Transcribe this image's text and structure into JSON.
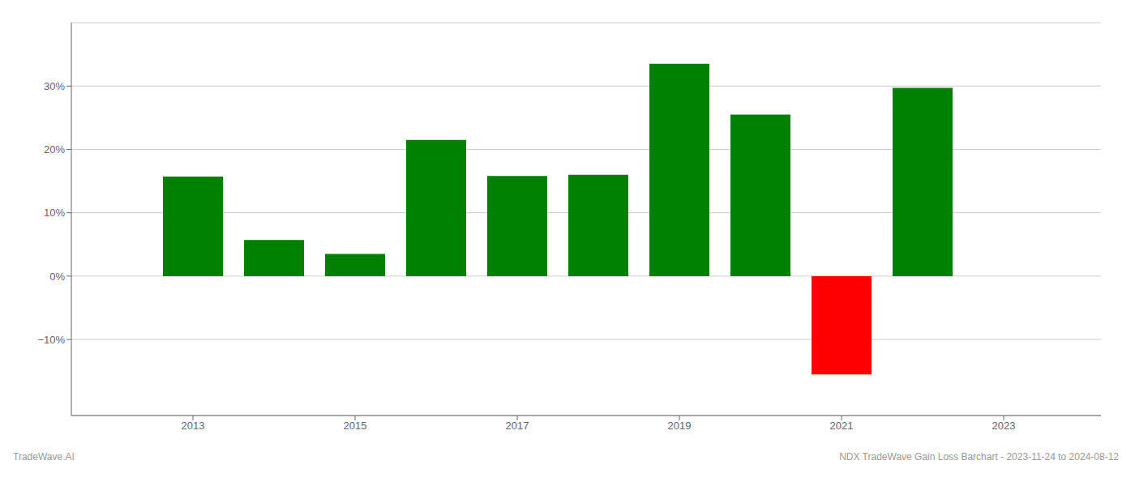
{
  "chart_data": {
    "type": "bar",
    "title": "NDX TradeWave Gain Loss Barchart - 2023-11-24 to 2024-08-12",
    "annotations": [
      "TradeWave.AI"
    ],
    "x": [
      2013,
      2014,
      2015,
      2016,
      2017,
      2018,
      2019,
      2020,
      2021,
      2022
    ],
    "values": [
      0.157,
      0.057,
      0.035,
      0.215,
      0.158,
      0.16,
      0.335,
      0.255,
      -0.155,
      0.297
    ],
    "colors": [
      "#008000",
      "#008000",
      "#008000",
      "#008000",
      "#008000",
      "#008000",
      "#008000",
      "#008000",
      "#ff0000",
      "#008000"
    ],
    "xlim": [
      2011.5,
      2024.2
    ],
    "xticks": [
      2013,
      2015,
      2017,
      2019,
      2021,
      2023
    ],
    "ylim": [
      -0.22,
      0.4
    ],
    "yticks": [
      {
        "value": -0.1,
        "label": "−10%"
      },
      {
        "value": 0.0,
        "label": "0%"
      },
      {
        "value": 0.1,
        "label": "10%"
      },
      {
        "value": 0.2,
        "label": "20%"
      },
      {
        "value": 0.3,
        "label": "30%"
      }
    ],
    "grid": true
  }
}
